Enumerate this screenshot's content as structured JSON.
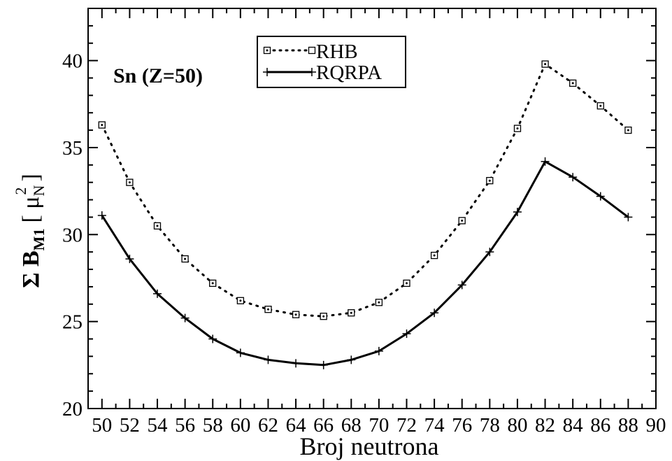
{
  "chart_data": {
    "type": "line",
    "title": "",
    "xlabel": "Broj neutrona",
    "ylabel_symbol": "Σ B",
    "ylabel_subscript": "M1",
    "ylabel_unit_open": "[ μ",
    "ylabel_unit_sub": "N",
    "ylabel_unit_sup": "2",
    "ylabel_unit_close": "]",
    "annotation": "Sn (Z=50)",
    "xlim": [
      49,
      90
    ],
    "ylim": [
      20,
      43
    ],
    "x_ticks": [
      50,
      52,
      54,
      56,
      58,
      60,
      62,
      64,
      66,
      68,
      70,
      72,
      74,
      76,
      78,
      80,
      82,
      84,
      86,
      88,
      90
    ],
    "y_ticks": [
      20,
      25,
      30,
      35,
      40
    ],
    "grid": false,
    "legend_position": "top-center",
    "x": [
      50,
      52,
      54,
      56,
      58,
      60,
      62,
      64,
      66,
      68,
      70,
      72,
      74,
      76,
      78,
      80,
      82,
      84,
      86,
      88
    ],
    "series": [
      {
        "name": "RHB",
        "line_style": "dotted",
        "marker": "square-with-dot",
        "values": [
          36.3,
          33.0,
          30.5,
          28.6,
          27.2,
          26.2,
          25.7,
          25.4,
          25.3,
          25.5,
          26.1,
          27.2,
          28.8,
          30.8,
          33.1,
          36.1,
          39.8,
          38.7,
          37.4,
          36.0
        ]
      },
      {
        "name": "RQRPA",
        "line_style": "solid",
        "marker": "plus",
        "values": [
          31.1,
          28.6,
          26.6,
          25.2,
          24.0,
          23.2,
          22.8,
          22.6,
          22.5,
          22.8,
          23.3,
          24.3,
          25.5,
          27.1,
          29.0,
          31.3,
          34.2,
          33.3,
          32.2,
          31.0
        ]
      }
    ]
  }
}
